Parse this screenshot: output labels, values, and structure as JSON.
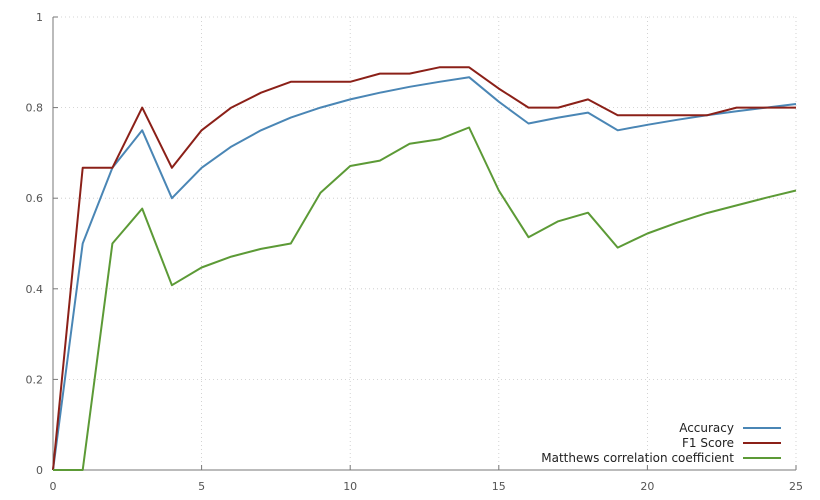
{
  "chart_data": {
    "type": "line",
    "title": "",
    "xlabel": "",
    "ylabel": "",
    "xlim": [
      0,
      25
    ],
    "ylim": [
      0,
      1
    ],
    "x_ticks": [
      0,
      5,
      10,
      15,
      20,
      25
    ],
    "y_ticks": [
      0,
      0.2,
      0.4,
      0.6,
      0.8,
      1
    ],
    "y_tick_labels": [
      "0",
      "0.2",
      "0.4",
      "0.6",
      "0.8",
      "1"
    ],
    "grid": true,
    "legend_position": "bottom-right",
    "x": [
      0,
      1,
      2,
      3,
      4,
      5,
      6,
      7,
      8,
      9,
      10,
      11,
      12,
      13,
      14,
      15,
      16,
      17,
      18,
      19,
      20,
      21,
      22,
      23,
      24,
      25
    ],
    "series": [
      {
        "name": "Accuracy",
        "color": "#4a86b5",
        "values": [
          0,
          0.5,
          0.667,
          0.75,
          0.6,
          0.667,
          0.714,
          0.75,
          0.778,
          0.8,
          0.818,
          0.833,
          0.846,
          0.857,
          0.867,
          0.813,
          0.765,
          0.778,
          0.789,
          0.75,
          0.762,
          0.773,
          0.783,
          0.792,
          0.8,
          0.808
        ]
      },
      {
        "name": "F1 Score",
        "color": "#8b2018",
        "values": [
          0,
          0.667,
          0.667,
          0.8,
          0.667,
          0.75,
          0.8,
          0.833,
          0.857,
          0.857,
          0.857,
          0.875,
          0.875,
          0.889,
          0.889,
          0.842,
          0.8,
          0.8,
          0.818,
          0.783,
          0.783,
          0.783,
          0.783,
          0.8,
          0.8,
          0.8
        ]
      },
      {
        "name": "Matthews correlation coefficient",
        "color": "#5c9a36",
        "values": [
          0,
          0,
          0.5,
          0.577,
          0.408,
          0.447,
          0.471,
          0.488,
          0.5,
          0.612,
          0.671,
          0.683,
          0.72,
          0.73,
          0.756,
          0.617,
          0.514,
          0.549,
          0.568,
          0.491,
          0.522,
          0.546,
          0.567,
          0.584,
          0.601,
          0.617
        ]
      }
    ]
  }
}
